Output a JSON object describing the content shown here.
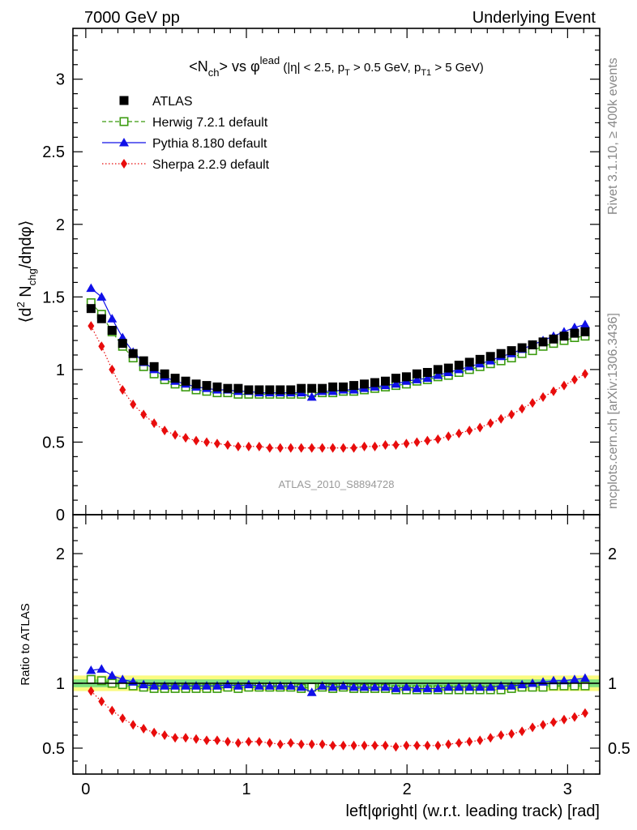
{
  "header": {
    "left": "7000 GeV pp",
    "right": "Underlying Event"
  },
  "side_labels": {
    "rivet": "Rivet 3.1.10, ≥ 400k events",
    "mcplots": "mcplots.cern.ch [arXiv:1306.3436]"
  },
  "watermark": "ATLAS_2010_S8894728",
  "chart_data": {
    "type": "scatter",
    "title_parts": {
      "n": "<N",
      "n_sub": "ch",
      "vs": "> vs φ",
      "lead_sup": "lead",
      "cut1": " (|η| < 2.5, p",
      "t_sub": "T",
      "cut2": " > 0.5 GeV, p",
      "t1_sub": "T1",
      "cut3": " > 5 GeV)"
    },
    "xlabel": "left|φright| (w.r.t. leading track) [rad]",
    "ylabel_parts": {
      "open": "⟨d",
      "sup2": "2",
      "n": " N",
      "sub": "chg",
      "rest": "/dηdφ⟩"
    },
    "ratio_ylabel": "Ratio to ATLAS",
    "xlim": [
      -0.08,
      3.2
    ],
    "ylim": [
      0,
      3.35
    ],
    "ratio_ylim": [
      0.3,
      2.3
    ],
    "x_ticks": [
      "0",
      "1",
      "2",
      "3"
    ],
    "y_ticks": [
      "0",
      "0.5",
      "1",
      "1.5",
      "2",
      "2.5",
      "3"
    ],
    "ratio_y_ticks": [
      "0.5",
      "1",
      "2"
    ],
    "legend_position": "top-left",
    "x": [
      0.0327,
      0.0982,
      0.1636,
      0.2291,
      0.2945,
      0.36,
      0.4254,
      0.4909,
      0.5563,
      0.6218,
      0.6872,
      0.7527,
      0.8181,
      0.8836,
      0.949,
      1.0145,
      1.0799,
      1.1454,
      1.2108,
      1.2763,
      1.3417,
      1.4072,
      1.4726,
      1.5381,
      1.6035,
      1.669,
      1.7344,
      1.7999,
      1.8653,
      1.9308,
      1.9962,
      2.0617,
      2.1271,
      2.1926,
      2.258,
      2.3235,
      2.3889,
      2.4544,
      2.5198,
      2.5853,
      2.6507,
      2.7162,
      2.7816,
      2.8471,
      2.9125,
      2.978,
      3.0434,
      3.1089
    ],
    "series": [
      {
        "name": "ATLAS",
        "color": "#000000",
        "marker": "filled-square",
        "line": "none",
        "values": [
          1.42,
          1.35,
          1.27,
          1.18,
          1.11,
          1.06,
          1.02,
          0.97,
          0.94,
          0.92,
          0.9,
          0.89,
          0.88,
          0.87,
          0.87,
          0.86,
          0.86,
          0.86,
          0.86,
          0.86,
          0.87,
          0.87,
          0.87,
          0.88,
          0.88,
          0.89,
          0.9,
          0.91,
          0.92,
          0.94,
          0.95,
          0.97,
          0.98,
          1.0,
          1.01,
          1.03,
          1.05,
          1.07,
          1.09,
          1.11,
          1.13,
          1.15,
          1.17,
          1.19,
          1.21,
          1.23,
          1.25,
          1.26
        ]
      },
      {
        "name": "Herwig 7.2.1 default",
        "color": "#3b9b0f",
        "marker": "open-square",
        "line": "dashed",
        "values": [
          1.46,
          1.38,
          1.26,
          1.16,
          1.08,
          1.02,
          0.97,
          0.93,
          0.9,
          0.88,
          0.86,
          0.85,
          0.84,
          0.84,
          0.83,
          0.83,
          0.83,
          0.83,
          0.83,
          0.83,
          0.83,
          0.84,
          0.84,
          0.84,
          0.85,
          0.85,
          0.86,
          0.87,
          0.88,
          0.89,
          0.9,
          0.92,
          0.93,
          0.95,
          0.96,
          0.98,
          1.0,
          1.02,
          1.04,
          1.06,
          1.08,
          1.11,
          1.13,
          1.16,
          1.18,
          1.2,
          1.22,
          1.23
        ]
      },
      {
        "name": "Pythia 8.180 default",
        "color": "#1010e8",
        "marker": "filled-triangle",
        "line": "solid",
        "values": [
          1.56,
          1.5,
          1.35,
          1.22,
          1.12,
          1.05,
          1.0,
          0.95,
          0.92,
          0.9,
          0.88,
          0.87,
          0.86,
          0.86,
          0.85,
          0.85,
          0.84,
          0.84,
          0.84,
          0.84,
          0.84,
          0.81,
          0.85,
          0.85,
          0.86,
          0.86,
          0.87,
          0.88,
          0.89,
          0.9,
          0.92,
          0.93,
          0.94,
          0.96,
          0.98,
          1.0,
          1.02,
          1.04,
          1.06,
          1.09,
          1.11,
          1.14,
          1.17,
          1.2,
          1.23,
          1.26,
          1.29,
          1.31
        ]
      },
      {
        "name": "Sherpa 2.2.9 default",
        "color": "#e80c0c",
        "marker": "filled-diamond",
        "line": "dotted",
        "values": [
          1.3,
          1.16,
          1.0,
          0.86,
          0.76,
          0.69,
          0.63,
          0.58,
          0.55,
          0.53,
          0.51,
          0.5,
          0.49,
          0.48,
          0.47,
          0.47,
          0.47,
          0.46,
          0.46,
          0.46,
          0.46,
          0.46,
          0.46,
          0.46,
          0.46,
          0.46,
          0.47,
          0.47,
          0.48,
          0.48,
          0.49,
          0.5,
          0.51,
          0.52,
          0.54,
          0.56,
          0.58,
          0.6,
          0.63,
          0.66,
          0.69,
          0.73,
          0.77,
          0.81,
          0.85,
          0.89,
          0.93,
          0.97
        ]
      }
    ],
    "ratio": {
      "band_inner": [
        0.97,
        1.03
      ],
      "band_outer": [
        0.94,
        1.06
      ],
      "band_inner_color": "#7fe27f",
      "band_outer_color": "#fbfb80",
      "series": [
        {
          "name": "Herwig 7.2.1 default",
          "values": [
            1.03,
            1.02,
            1.0,
            0.99,
            0.98,
            0.97,
            0.96,
            0.96,
            0.96,
            0.96,
            0.96,
            0.96,
            0.96,
            0.97,
            0.96,
            0.97,
            0.97,
            0.97,
            0.97,
            0.97,
            0.96,
            0.97,
            0.97,
            0.96,
            0.97,
            0.96,
            0.96,
            0.96,
            0.96,
            0.95,
            0.95,
            0.95,
            0.95,
            0.95,
            0.95,
            0.95,
            0.95,
            0.95,
            0.95,
            0.95,
            0.96,
            0.97,
            0.97,
            0.97,
            0.98,
            0.98,
            0.98,
            0.98
          ]
        },
        {
          "name": "Pythia 8.180 default",
          "values": [
            1.1,
            1.11,
            1.06,
            1.03,
            1.01,
            0.99,
            0.98,
            0.98,
            0.98,
            0.98,
            0.98,
            0.98,
            0.98,
            0.99,
            0.98,
            0.99,
            0.98,
            0.98,
            0.98,
            0.98,
            0.97,
            0.93,
            0.98,
            0.97,
            0.98,
            0.97,
            0.97,
            0.97,
            0.97,
            0.96,
            0.97,
            0.96,
            0.96,
            0.96,
            0.97,
            0.97,
            0.97,
            0.97,
            0.97,
            0.98,
            0.98,
            0.99,
            1.0,
            1.01,
            1.02,
            1.02,
            1.03,
            1.04
          ]
        },
        {
          "name": "Sherpa 2.2.9 default",
          "values": [
            0.94,
            0.86,
            0.79,
            0.73,
            0.68,
            0.65,
            0.62,
            0.6,
            0.58,
            0.58,
            0.57,
            0.56,
            0.56,
            0.55,
            0.54,
            0.55,
            0.55,
            0.54,
            0.53,
            0.54,
            0.53,
            0.53,
            0.53,
            0.52,
            0.52,
            0.52,
            0.52,
            0.52,
            0.52,
            0.51,
            0.52,
            0.52,
            0.52,
            0.52,
            0.53,
            0.54,
            0.55,
            0.56,
            0.58,
            0.6,
            0.61,
            0.63,
            0.66,
            0.68,
            0.7,
            0.72,
            0.74,
            0.77
          ]
        }
      ]
    }
  }
}
